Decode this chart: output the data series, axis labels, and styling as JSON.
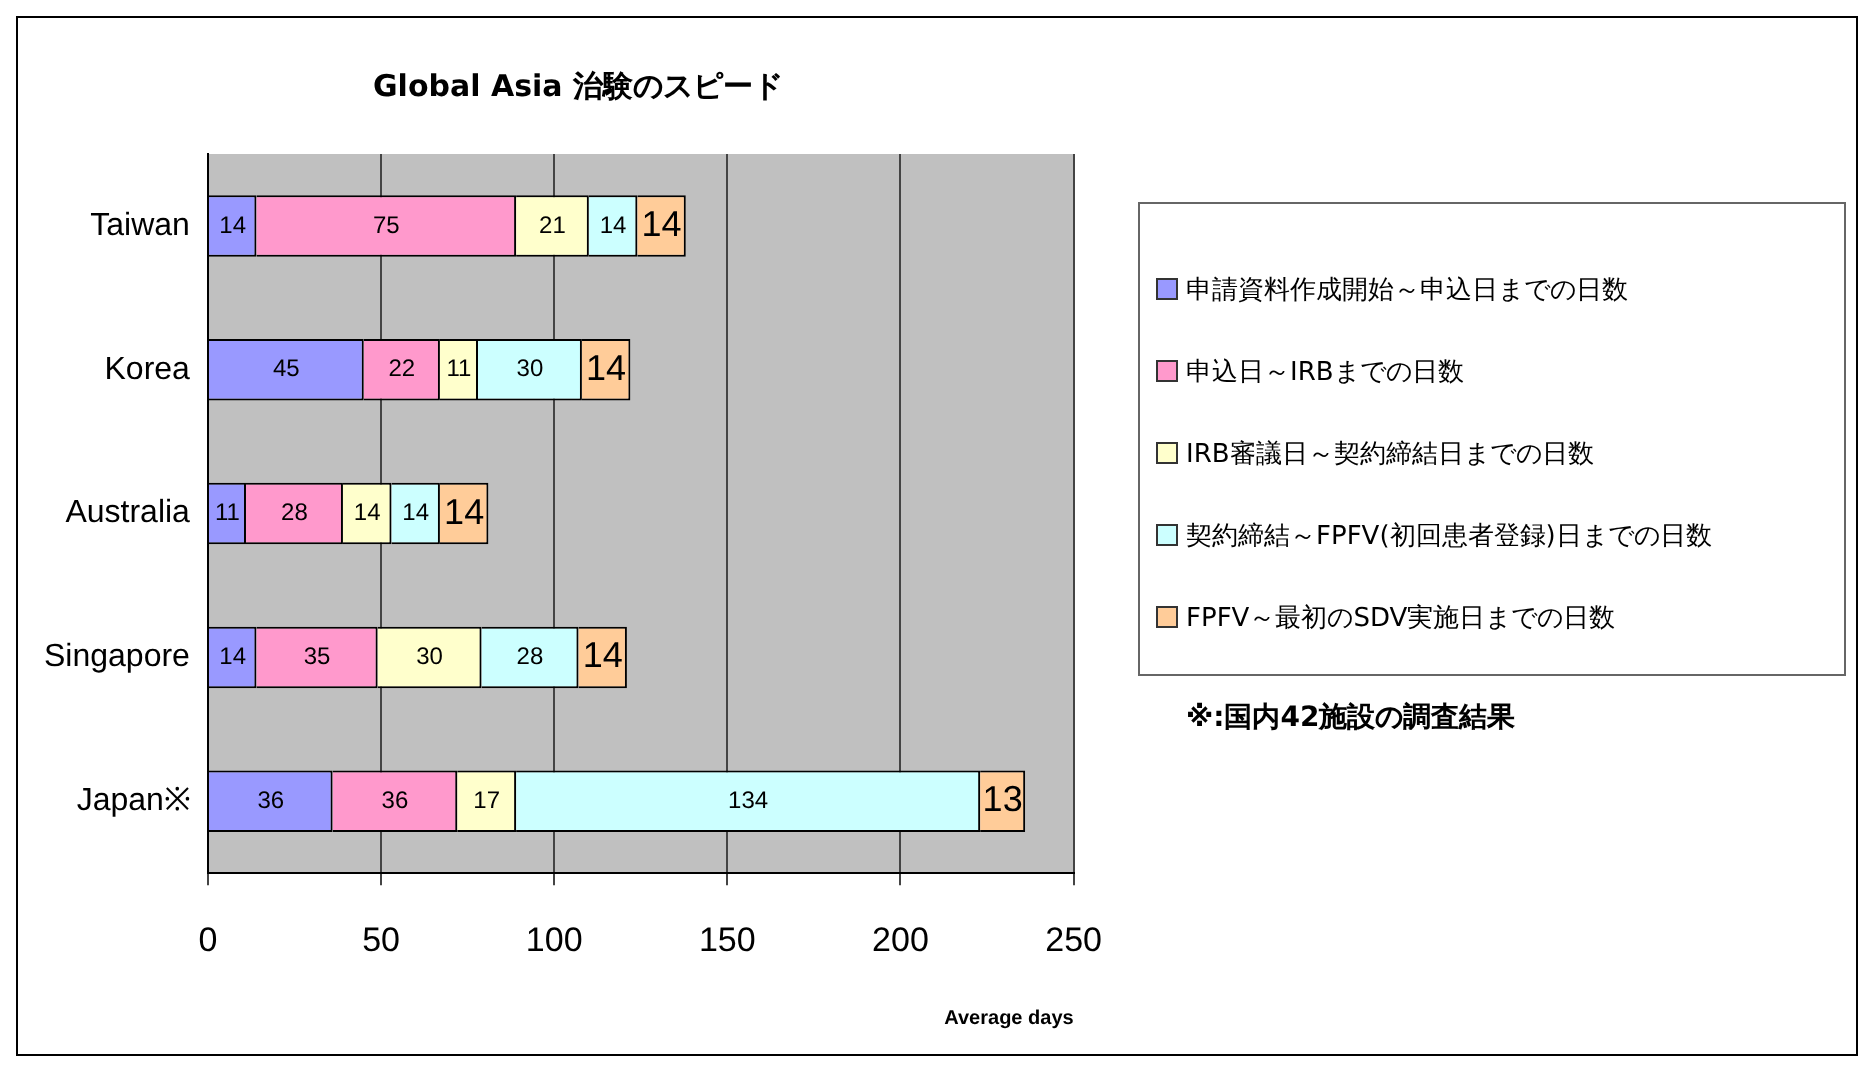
{
  "chart_data": {
    "type": "bar",
    "orientation": "horizontal",
    "stacked": true,
    "title": "Global Asia 治験のスピード",
    "xlabel": "Average days",
    "categories": [
      "Taiwan",
      "Korea",
      "Australia",
      "Singapore",
      "Japan※"
    ],
    "series": [
      {
        "name": "申請資料作成開始～申込日までの日数",
        "color": "#9999ff",
        "values": [
          14,
          45,
          11,
          14,
          36
        ]
      },
      {
        "name": "申込日～IRBまでの日数",
        "color": "#ff99cc",
        "values": [
          75,
          22,
          28,
          35,
          36
        ]
      },
      {
        "name": "IRB審議日～契約締結日までの日数",
        "color": "#ffffcc",
        "values": [
          21,
          11,
          14,
          30,
          17
        ]
      },
      {
        "name": "契約締結～FPFV(初回患者登録)日までの日数",
        "color": "#ccffff",
        "values": [
          14,
          30,
          14,
          28,
          134
        ]
      },
      {
        "name": "FPFV～最初のSDV実施日までの日数",
        "color": "#ffcc99",
        "values": [
          14,
          14,
          14,
          14,
          13
        ]
      }
    ],
    "xlim": [
      0,
      250
    ],
    "xticks": [
      0,
      50,
      100,
      150,
      200,
      250
    ],
    "grid": "x",
    "legend": "right",
    "data_labels": true,
    "annotations": [
      "※:国内42施設の調査結果"
    ]
  }
}
